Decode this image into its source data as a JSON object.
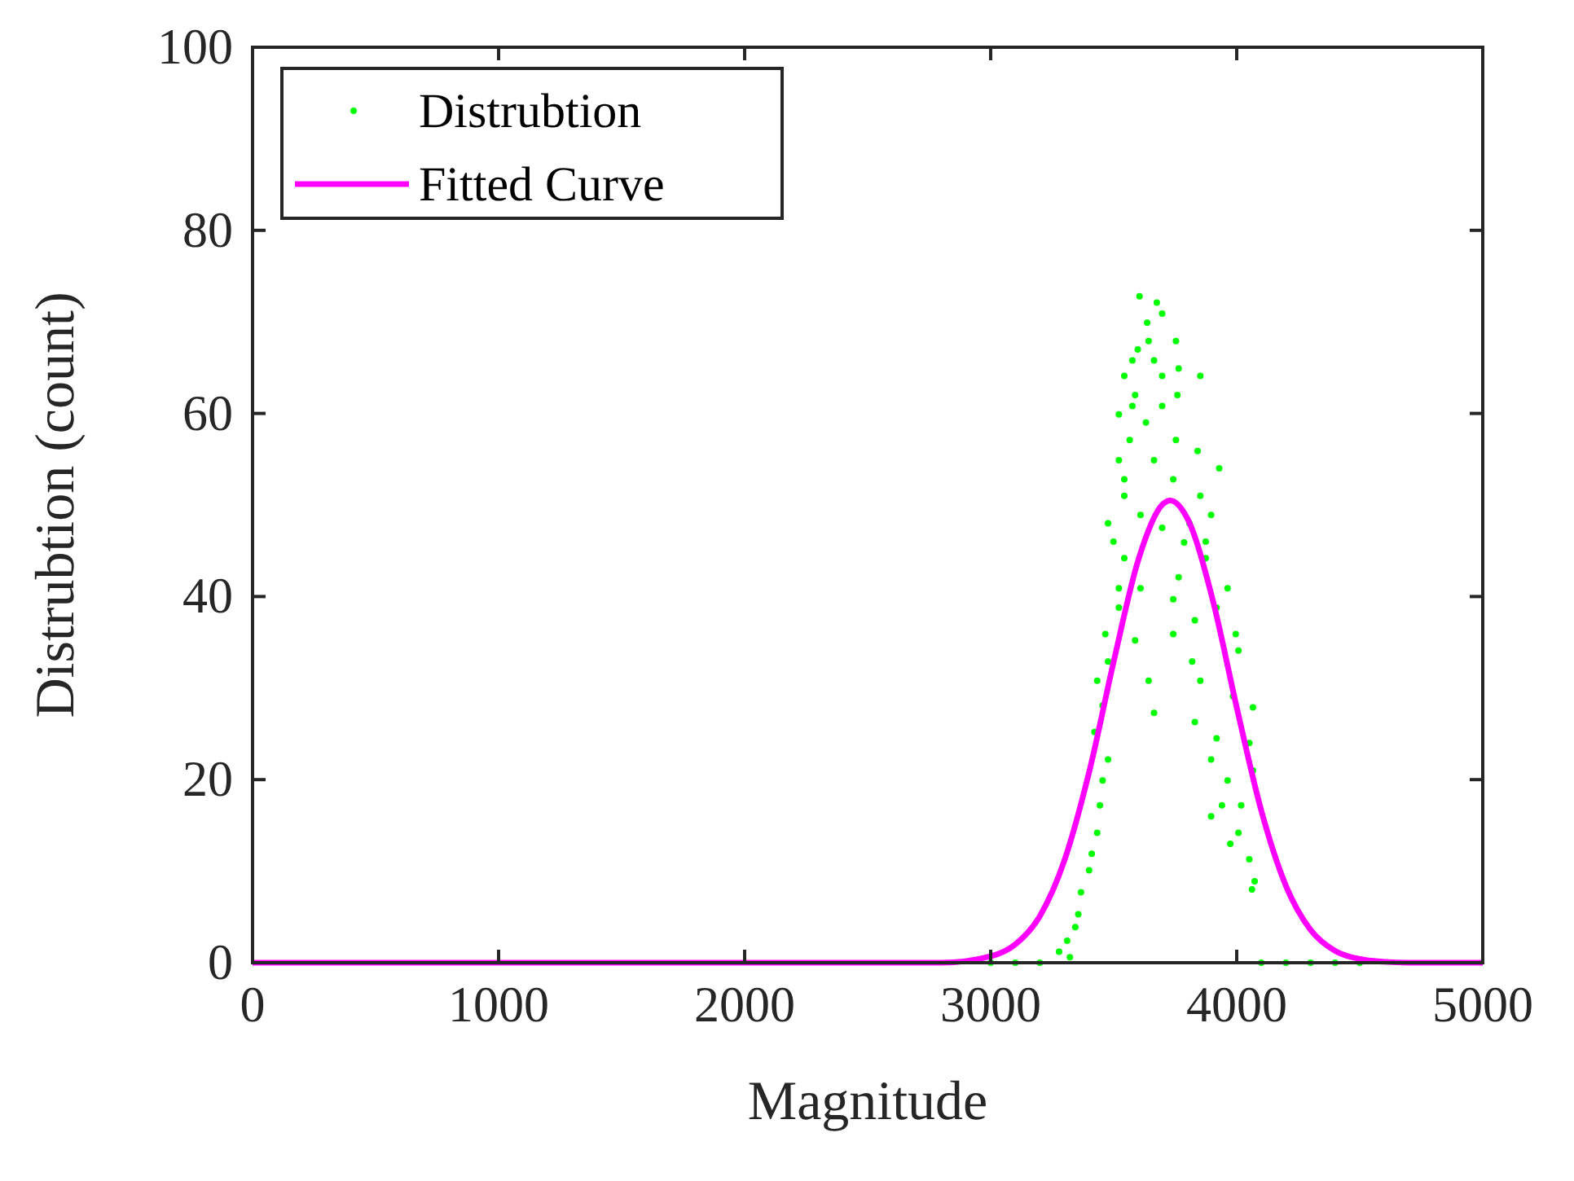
{
  "chart_data": {
    "type": "scatter",
    "xlabel": "Magnitude",
    "ylabel": "Distrubtion (count)",
    "xlim": [
      0,
      5000
    ],
    "ylim": [
      0,
      100
    ],
    "xticks": [
      0,
      1000,
      2000,
      3000,
      4000,
      5000
    ],
    "yticks": [
      0,
      20,
      40,
      60,
      80,
      100
    ],
    "grid": false,
    "legend": "top left",
    "series": [
      {
        "name": "Distrubtion",
        "color": "#00ff00",
        "x": [
          3000,
          3100,
          3200,
          4100,
          4200,
          4300,
          4400,
          4500,
          3605,
          3675,
          3697,
          3636,
          3642,
          3753,
          3598,
          3576,
          3664,
          3764,
          3543,
          3697,
          3852,
          3587,
          3759,
          3576,
          3697,
          3521,
          3631,
          3565,
          3753,
          3841,
          3521,
          3664,
          3929,
          3543,
          3742,
          3543,
          3852,
          3896,
          3477,
          3808,
          3499,
          3874,
          3543,
          3874,
          3521,
          3963,
          3764,
          3521,
          3918,
          3466,
          3996,
          3742,
          3477,
          4007,
          3819,
          3433,
          3642,
          3985,
          3455,
          3664,
          3830,
          4066,
          3422,
          4051,
          3896,
          3477,
          3455,
          4066,
          3963,
          3444,
          4018,
          3896,
          3433,
          3974,
          3411,
          4051,
          3400,
          4073,
          3367,
          4062,
          3356,
          3344,
          3311,
          3278,
          3322,
          3609,
          3697,
          3786,
          3609,
          3742,
          3830,
          3587,
          3852,
          3918,
          3940,
          4007
        ],
        "values": [
          0,
          0,
          0,
          0,
          0,
          0,
          0,
          0,
          72.8,
          72.1,
          70.9,
          69.9,
          67.9,
          67.9,
          67.0,
          65.8,
          65.8,
          64.9,
          64.1,
          64.1,
          64.1,
          62.0,
          62.0,
          60.8,
          60.8,
          59.9,
          59.0,
          57.1,
          57.1,
          55.9,
          54.9,
          54.9,
          54.0,
          52.8,
          52.8,
          51.0,
          51.0,
          48.9,
          48.0,
          48.0,
          46.0,
          46.0,
          44.2,
          44.2,
          40.9,
          40.9,
          42.1,
          38.8,
          38.8,
          35.9,
          35.9,
          35.9,
          32.9,
          34.1,
          32.9,
          30.8,
          30.8,
          29.1,
          28.1,
          27.3,
          26.3,
          27.9,
          25.2,
          24.0,
          22.2,
          22.2,
          19.9,
          21.0,
          19.9,
          17.2,
          17.2,
          16.0,
          14.2,
          13.0,
          11.9,
          11.3,
          10.1,
          8.9,
          7.7,
          8.0,
          5.3,
          3.9,
          2.4,
          1.2,
          0.6,
          48.9,
          47.5,
          45.9,
          40.9,
          39.7,
          37.4,
          35.2,
          30.8,
          24.5,
          17.2,
          14.2
        ]
      },
      {
        "name": "Fitted Curve",
        "type": "line",
        "color": "#ff00ff",
        "x": [
          0,
          2500,
          2800,
          3000,
          3100,
          3200,
          3300,
          3400,
          3500,
          3600,
          3700,
          3730,
          3800,
          3900,
          4000,
          4100,
          4200,
          4300,
          4400,
          4500,
          4600,
          4700,
          5000
        ],
        "values": [
          0,
          0,
          0,
          0.7,
          2.0,
          5.1,
          11.2,
          20.8,
          32.9,
          44.0,
          50.1,
          50.5,
          48.5,
          39.9,
          27.9,
          16.6,
          8.4,
          3.6,
          1.3,
          0.4,
          0.1,
          0,
          0
        ]
      }
    ]
  }
}
